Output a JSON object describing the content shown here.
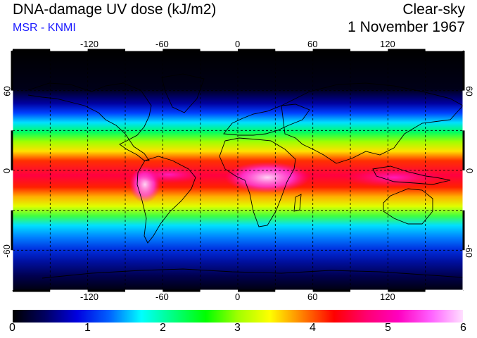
{
  "header": {
    "title": "DNA-damage UV dose (kJ/m2)",
    "subtitle": "MSR - KNMI",
    "condition": "Clear-sky",
    "date": "1 November 1967"
  },
  "map": {
    "projection": "equirectangular",
    "lon_range": [
      -180,
      180
    ],
    "lat_range": [
      -90,
      90
    ],
    "grid_spacing_deg": 30,
    "lon_ticks": [
      "-120",
      "-60",
      "0",
      "60",
      "120"
    ],
    "lat_ticks": [
      "60",
      "0",
      "-60"
    ]
  },
  "colorbar": {
    "range": [
      0,
      6
    ],
    "tick_labels": [
      "0",
      "1",
      "2",
      "3",
      "4",
      "5",
      "6"
    ],
    "colors": [
      "#000000",
      "#000060",
      "#0000e0",
      "#0060ff",
      "#00ffff",
      "#00ff80",
      "#00ff00",
      "#a0ff00",
      "#ffff00",
      "#ff8000",
      "#ff0000",
      "#ff0070",
      "#ff00c0",
      "#ff60ff",
      "#ffe0ff"
    ]
  }
}
